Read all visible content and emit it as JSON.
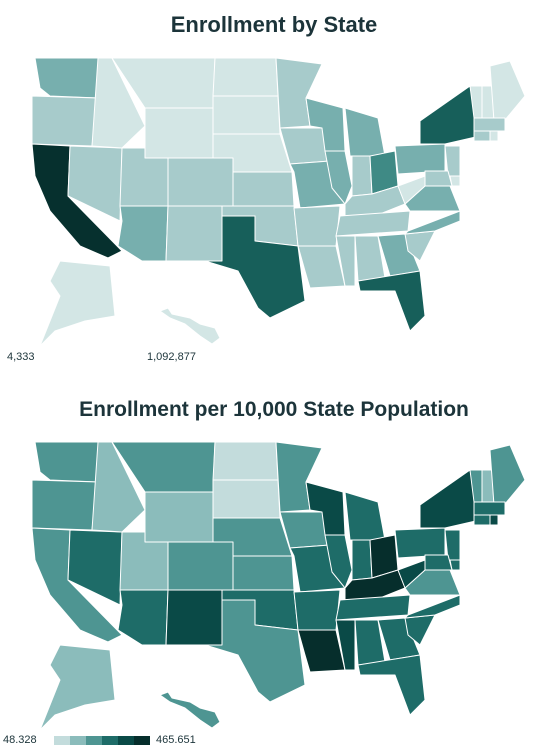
{
  "maps": [
    {
      "title": "Enrollment by State",
      "legend": {
        "min_label": "4,333",
        "max_label": "1,092,877",
        "min": 4333,
        "max": 1092877
      },
      "color_scale": [
        "#d3e6e5",
        "#a7cbcb",
        "#77afae",
        "#3f8a85",
        "#175f5a",
        "#06302e"
      ],
      "levels": {
        "WA": 3,
        "OR": 2,
        "CA": 6,
        "NV": 2,
        "ID": 1,
        "MT": 1,
        "WY": 1,
        "UT": 2,
        "AZ": 3,
        "CO": 2,
        "NM": 2,
        "ND": 1,
        "SD": 1,
        "NE": 1,
        "KS": 2,
        "OK": 2,
        "TX": 5,
        "MN": 2,
        "IA": 2,
        "MO": 3,
        "AR": 2,
        "LA": 2,
        "WI": 3,
        "IL": 3,
        "MI": 3,
        "IN": 2,
        "OH": 4,
        "KY": 2,
        "TN": 2,
        "MS": 2,
        "AL": 2,
        "GA": 3,
        "FL": 5,
        "SC": 2,
        "NC": 3,
        "VA": 3,
        "WV": 1,
        "PA": 3,
        "NY": 5,
        "VT": 1,
        "NH": 1,
        "ME": 1,
        "MA": 2,
        "CT": 2,
        "RI": 1,
        "NJ": 2,
        "DE": 1,
        "MD": 2,
        "AK": 1,
        "HI": 1
      }
    },
    {
      "title": "Enrollment per 10,000 State Population",
      "legend": {
        "min_label": "48.328",
        "max_label": "465.651",
        "min": 48.328,
        "max": 465.651
      },
      "color_scale": [
        "#c3dcdc",
        "#8bbcbb",
        "#4e9592",
        "#1e6c68",
        "#0a4a47",
        "#062e2c"
      ],
      "levels": {
        "WA": 3,
        "OR": 3,
        "CA": 3,
        "NV": 4,
        "ID": 2,
        "MT": 3,
        "WY": 2,
        "UT": 2,
        "AZ": 4,
        "CO": 3,
        "NM": 5,
        "ND": 1,
        "SD": 1,
        "NE": 3,
        "KS": 3,
        "OK": 4,
        "TX": 3,
        "MN": 3,
        "IA": 3,
        "MO": 4,
        "AR": 4,
        "LA": 6,
        "WI": 5,
        "IL": 4,
        "MI": 4,
        "IN": 4,
        "OH": 6,
        "KY": 6,
        "TN": 4,
        "MS": 5,
        "AL": 4,
        "GA": 4,
        "FL": 4,
        "SC": 4,
        "NC": 4,
        "VA": 3,
        "WV": 5,
        "PA": 4,
        "NY": 5,
        "VT": 3,
        "NH": 2,
        "ME": 3,
        "MA": 4,
        "CT": 4,
        "RI": 5,
        "NJ": 4,
        "DE": 4,
        "MD": 4,
        "AK": 2,
        "HI": 3
      }
    }
  ]
}
